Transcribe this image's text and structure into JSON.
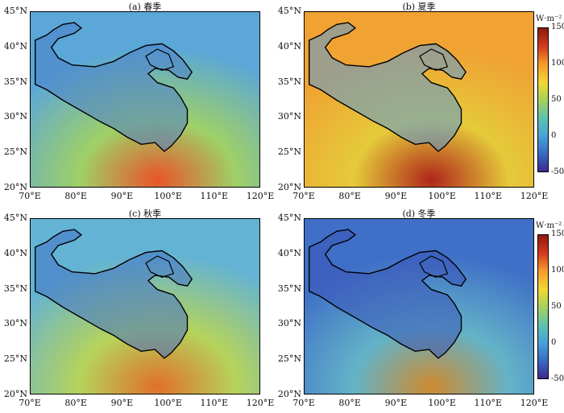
{
  "panels": [
    {
      "title": "(a) 春季",
      "season": "spring"
    },
    {
      "title": "(b) 夏季",
      "season": "summer"
    },
    {
      "title": "(c) 秋季",
      "season": "autumn"
    },
    {
      "title": "(d) 冬季",
      "season": "winter"
    }
  ],
  "y_ticks": [
    "45°N",
    "40°N",
    "35°N",
    "30°N",
    "25°N",
    "20°N"
  ],
  "x_ticks": [
    "70°E",
    "80°E",
    "90°E",
    "100°E",
    "110°E",
    "120°E"
  ],
  "colorbar": {
    "unit": "W·m⁻²",
    "ticks": [
      "150",
      "100",
      "50",
      "0",
      "-50"
    ],
    "range": [
      -50,
      150
    ],
    "colors": [
      "#3b2a8c",
      "#3b68c4",
      "#48a3d6",
      "#5fc1b0",
      "#a6d25a",
      "#f1d735",
      "#f59a2c",
      "#d63b1f",
      "#8b1a10"
    ]
  },
  "map_extent": {
    "lon": [
      70,
      120
    ],
    "lat": [
      20,
      45
    ]
  },
  "season_fields": {
    "spring": {
      "base": "#5aa7d8",
      "tp": "#4d7fc9",
      "hot": "#e9542a",
      "mid": "#9fd067"
    },
    "summer": {
      "base": "#f0a233",
      "tp": "#5a9ad6",
      "hot": "#b0261b",
      "mid": "#e5ca3a"
    },
    "autumn": {
      "base": "#63b3d4",
      "tp": "#4472c4",
      "hot": "#e0702a",
      "mid": "#b6d35a"
    },
    "winter": {
      "base": "#3f6fc7",
      "tp": "#3a55b8",
      "hot": "#cf8a2e",
      "mid": "#63b3c8"
    }
  }
}
